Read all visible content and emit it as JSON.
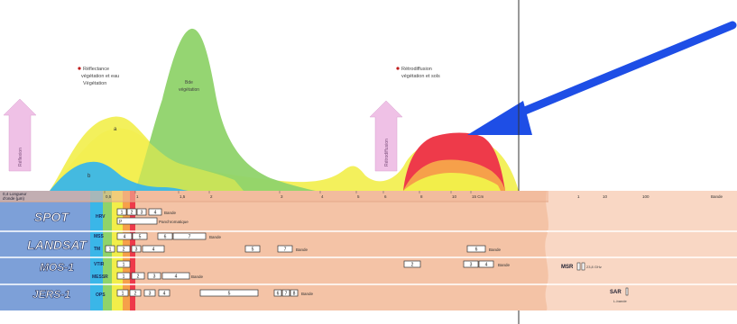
{
  "annotations": {
    "left_label": [
      "Réflectance",
      "végétation et eau",
      "Végétation"
    ],
    "peak_label": [
      "Bde",
      "végétation"
    ],
    "right_label": [
      "Rétrodiffusion",
      "végétation et sols"
    ],
    "curve_mark_a": "a",
    "curve_mark_b": "b"
  },
  "side_arrows": {
    "left": "Réflexion",
    "right": "Rétrodiffusion"
  },
  "wavelength_header": {
    "left_text": [
      "0,4 Longueur",
      "d'onde (µm)"
    ],
    "ticks": [
      "0,5",
      "1",
      "1,5",
      "2",
      "3",
      "4",
      "5",
      "6",
      "8",
      "10",
      "15 Cm"
    ],
    "right_ticks": [
      "1",
      "10",
      "100",
      "Bande"
    ]
  },
  "sensors": [
    {
      "name": "SPOT",
      "subtitle": "",
      "rows": [
        {
          "code": "HRV",
          "bands": [
            "1",
            "2",
            "3"
          ],
          "extra": [
            "4",
            "Bande"
          ],
          "note": [
            "P",
            "Panchromatique"
          ]
        }
      ]
    },
    {
      "name": "LANDSAT",
      "subtitle": "",
      "rows": [
        {
          "code": "MSS",
          "bands": [
            "4",
            "5",
            "6",
            "7"
          ],
          "label": "Bande"
        },
        {
          "code": "TM",
          "bands": [
            "1",
            "2",
            "3",
            "4",
            "5",
            "7",
            "6"
          ],
          "label": "Bande"
        }
      ]
    },
    {
      "name": "MOS-1",
      "subtitle": "",
      "rows": [
        {
          "code": "VTIR",
          "bands": [
            "1",
            "2",
            "3",
            "4"
          ],
          "label": "Bande"
        },
        {
          "code": "MESSR",
          "bands": [
            "1",
            "2",
            "3",
            "4"
          ],
          "label": "Bande"
        }
      ]
    },
    {
      "name": "JERS-1",
      "subtitle": "",
      "rows": [
        {
          "code": "OPS",
          "bands": [
            "1",
            "2",
            "3",
            "4",
            "5",
            "6",
            "7",
            "8"
          ],
          "label": "Bande"
        }
      ]
    }
  ],
  "microwave": {
    "msr_label": "MSR",
    "msr_note": "23,8 GHz",
    "sar_label": "SAR",
    "sar_note": "L-bande"
  },
  "colors": {
    "sensor_band": "#7da0d8",
    "panel_bg": "#f4c3a6",
    "panel_line": "#e3a98a",
    "curve_yellow": "#f2ee4a",
    "curve_green": "#8fd36a",
    "curve_blue": "#3ab6e8",
    "curve_red": "#ee3a4a",
    "arrow_blue": "#1e4ee6",
    "side_arrow": "#efc1e6"
  }
}
